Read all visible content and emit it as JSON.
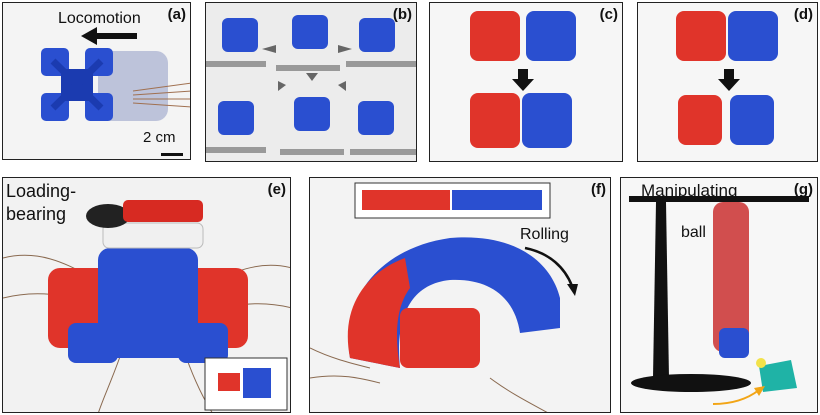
{
  "panels": {
    "a": {
      "label": "(a)",
      "caption": "Locomotion",
      "scale": "2 cm"
    },
    "b": {
      "label": "(b)"
    },
    "c": {
      "label": "(c)"
    },
    "d": {
      "label": "(d)"
    },
    "e": {
      "label": "(e)",
      "caption_line1": "Loading-",
      "caption_line2": "bearing"
    },
    "f": {
      "label": "(f)",
      "caption": "Rolling"
    },
    "g": {
      "label": "(g)",
      "caption_line1": "Manipulating",
      "caption_line2": "ball"
    }
  },
  "colors": {
    "blue_robot": "#2a4fd0",
    "red_robot": "#e0342a",
    "teal_box": "#1fb3a6",
    "arrow_orange": "#f2a516",
    "background": "#ffffff"
  }
}
